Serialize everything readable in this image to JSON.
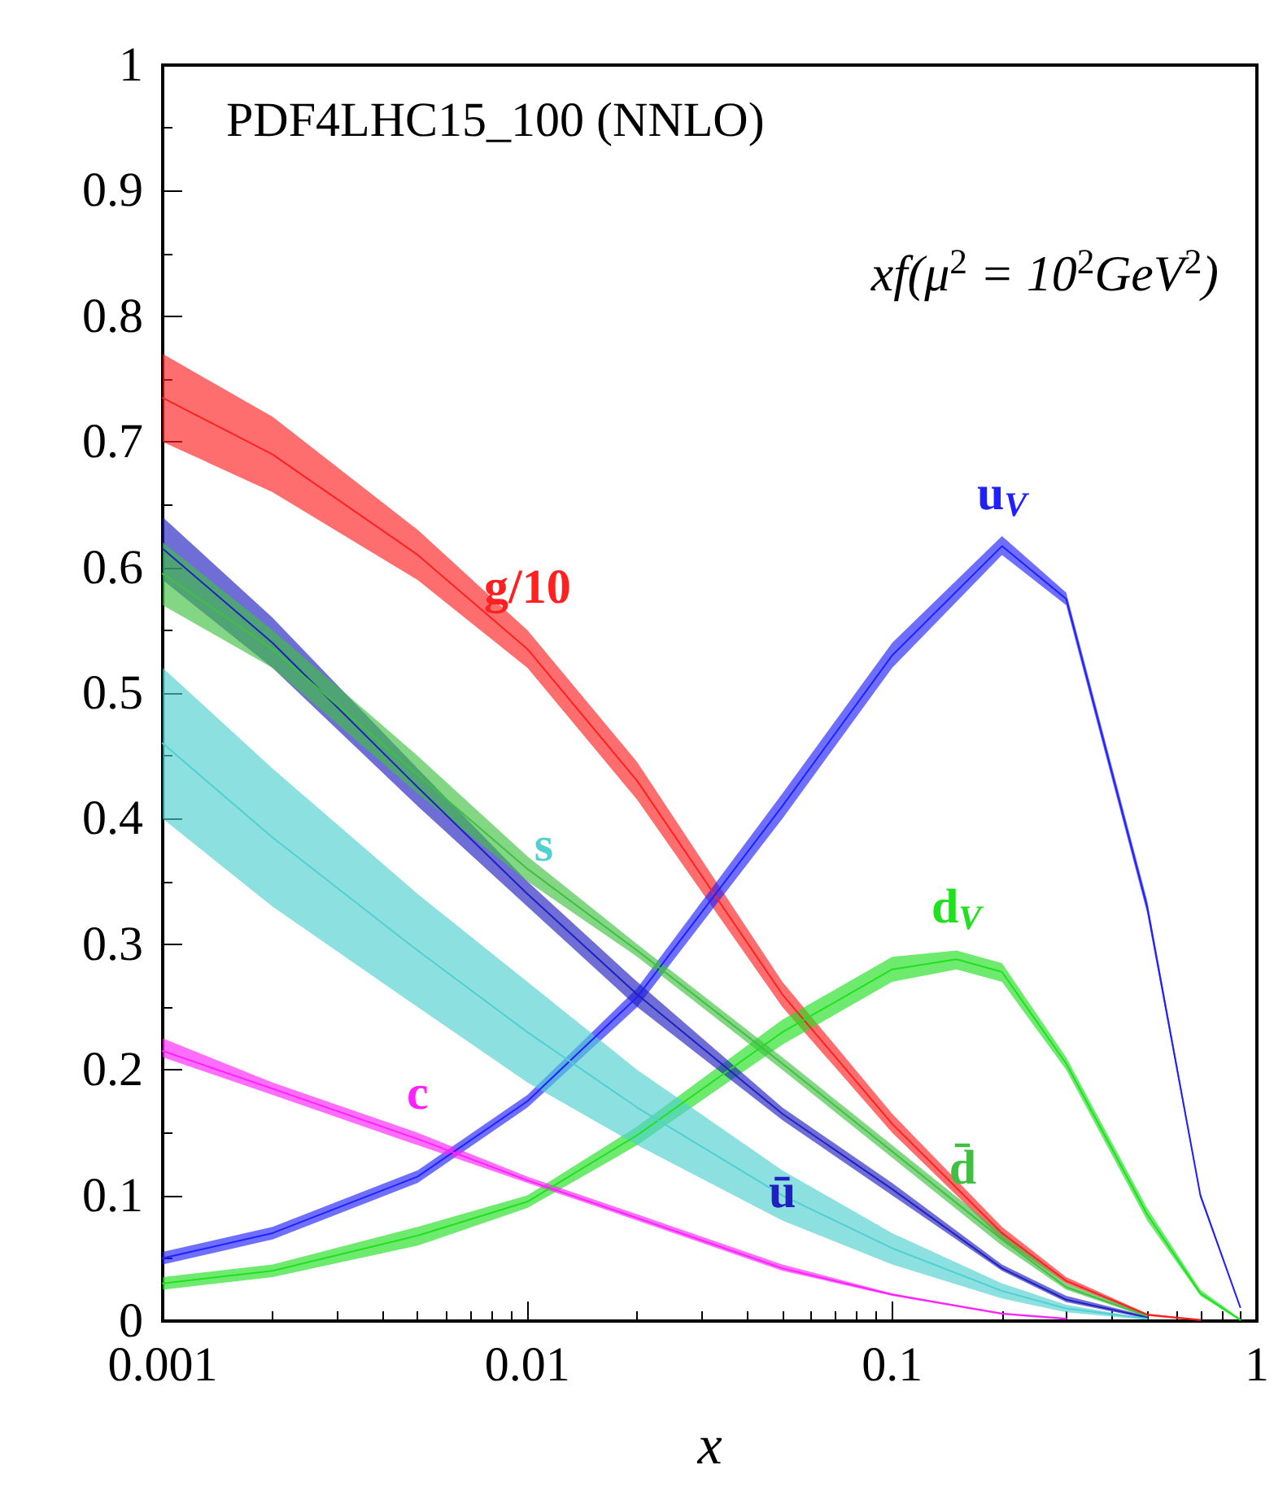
{
  "chart_data": {
    "type": "line",
    "title": "PDF4LHC15_100 (NNLO)",
    "annotations": [
      "xf(μ$^{2}$ = 10$^{2}$GeV$^{2}$)"
    ],
    "xlabel": "x",
    "log": "x",
    "xlim": [
      0.001,
      1
    ],
    "xticks": [
      0.001,
      0.01,
      0.1,
      1
    ],
    "ylim": [
      0,
      1
    ],
    "yticks": [
      0,
      0.1,
      0.2,
      0.3,
      0.4,
      0.5,
      0.6,
      0.7,
      0.8,
      0.9,
      1
    ],
    "legend": false,
    "grid": false,
    "series": [
      {
        "name": "g/10",
        "color": "#ff2020",
        "x": [
          0.001,
          0.002,
          0.005,
          0.01,
          0.02,
          0.05,
          0.1,
          0.2,
          0.3,
          0.5,
          0.7
        ],
        "values": [
          0.735,
          0.69,
          0.61,
          0.535,
          0.43,
          0.26,
          0.157,
          0.07,
          0.032,
          0.005,
          0.001
        ],
        "lower": [
          0.7,
          0.66,
          0.59,
          0.52,
          0.415,
          0.25,
          0.15,
          0.065,
          0.03,
          0.004,
          0
        ],
        "upper": [
          0.77,
          0.72,
          0.63,
          0.55,
          0.445,
          0.27,
          0.165,
          0.075,
          0.035,
          0.006,
          0.001
        ]
      },
      {
        "name": "u$_{V}$",
        "color": "#2020ff",
        "x": [
          0.001,
          0.002,
          0.005,
          0.01,
          0.02,
          0.05,
          0.1,
          0.2,
          0.3,
          0.5,
          0.7,
          0.9
        ],
        "values": [
          0.05,
          0.07,
          0.115,
          0.175,
          0.258,
          0.41,
          0.53,
          0.617,
          0.575,
          0.33,
          0.1,
          0.011
        ],
        "lower": [
          0.045,
          0.065,
          0.11,
          0.17,
          0.25,
          0.4,
          0.52,
          0.61,
          0.57,
          0.325,
          0.098,
          0.01
        ],
        "upper": [
          0.055,
          0.075,
          0.12,
          0.18,
          0.265,
          0.42,
          0.54,
          0.625,
          0.58,
          0.335,
          0.102,
          0.012
        ]
      },
      {
        "name": "d$_{V}$",
        "color": "#20e020",
        "x": [
          0.001,
          0.002,
          0.005,
          0.01,
          0.02,
          0.05,
          0.1,
          0.15,
          0.2,
          0.3,
          0.5,
          0.7,
          0.9
        ],
        "values": [
          0.03,
          0.04,
          0.068,
          0.095,
          0.148,
          0.23,
          0.28,
          0.288,
          0.278,
          0.205,
          0.085,
          0.022,
          0.001
        ],
        "lower": [
          0.025,
          0.035,
          0.06,
          0.09,
          0.14,
          0.22,
          0.27,
          0.28,
          0.27,
          0.2,
          0.08,
          0.02,
          0
        ],
        "upper": [
          0.035,
          0.045,
          0.075,
          0.1,
          0.155,
          0.24,
          0.29,
          0.295,
          0.285,
          0.21,
          0.09,
          0.025,
          0.002
        ]
      },
      {
        "name": "ū",
        "color": "#2020c0",
        "x": [
          0.001,
          0.002,
          0.005,
          0.01,
          0.02,
          0.05,
          0.1,
          0.2,
          0.3,
          0.5
        ],
        "values": [
          0.615,
          0.54,
          0.425,
          0.34,
          0.26,
          0.165,
          0.105,
          0.042,
          0.017,
          0.003
        ],
        "lower": [
          0.59,
          0.52,
          0.41,
          0.33,
          0.25,
          0.16,
          0.1,
          0.04,
          0.015,
          0.002
        ],
        "upper": [
          0.64,
          0.56,
          0.44,
          0.35,
          0.27,
          0.17,
          0.11,
          0.045,
          0.02,
          0.004
        ]
      },
      {
        "name": "d̄",
        "color": "#40c040",
        "x": [
          0.001,
          0.002,
          0.005,
          0.01,
          0.02,
          0.05,
          0.1,
          0.2,
          0.3,
          0.5
        ],
        "values": [
          0.595,
          0.535,
          0.435,
          0.36,
          0.295,
          0.205,
          0.135,
          0.065,
          0.027,
          0.004
        ],
        "lower": [
          0.57,
          0.52,
          0.42,
          0.35,
          0.29,
          0.2,
          0.13,
          0.06,
          0.025,
          0.003
        ],
        "upper": [
          0.62,
          0.55,
          0.45,
          0.37,
          0.3,
          0.21,
          0.14,
          0.07,
          0.03,
          0.005
        ]
      },
      {
        "name": "s",
        "color": "#50d0d0",
        "x": [
          0.001,
          0.002,
          0.005,
          0.01,
          0.02,
          0.05,
          0.1,
          0.2,
          0.3,
          0.5
        ],
        "values": [
          0.46,
          0.385,
          0.295,
          0.23,
          0.17,
          0.1,
          0.058,
          0.024,
          0.01,
          0.002
        ],
        "lower": [
          0.4,
          0.33,
          0.25,
          0.19,
          0.14,
          0.08,
          0.045,
          0.018,
          0.007,
          0.001
        ],
        "upper": [
          0.52,
          0.44,
          0.34,
          0.27,
          0.2,
          0.12,
          0.07,
          0.03,
          0.013,
          0.002
        ]
      },
      {
        "name": "c",
        "color": "#ff20ff",
        "x": [
          0.001,
          0.002,
          0.005,
          0.01,
          0.02,
          0.05,
          0.1,
          0.2,
          0.3
        ],
        "values": [
          0.215,
          0.185,
          0.145,
          0.112,
          0.082,
          0.042,
          0.021,
          0.006,
          0.002
        ],
        "lower": [
          0.21,
          0.18,
          0.14,
          0.11,
          0.08,
          0.04,
          0.02,
          0.005,
          0.001
        ],
        "upper": [
          0.225,
          0.19,
          0.15,
          0.115,
          0.085,
          0.045,
          0.022,
          0.006,
          0.002
        ]
      }
    ]
  }
}
